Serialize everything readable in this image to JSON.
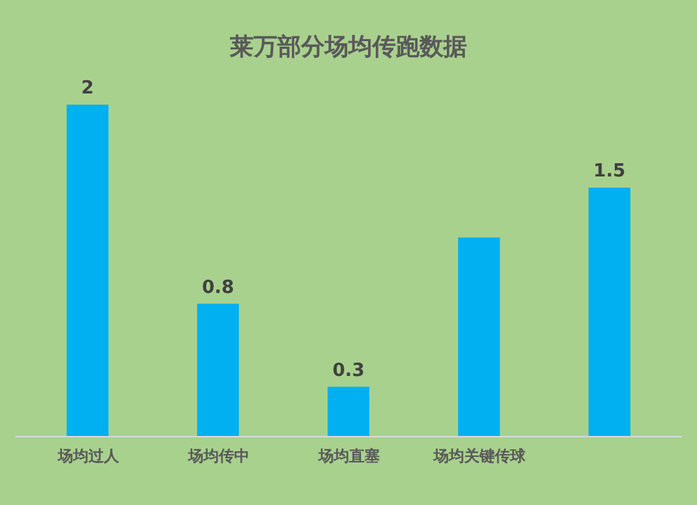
{
  "chart_data": {
    "type": "bar",
    "title": "莱万部分场均传跑数据",
    "categories": [
      "场均过人",
      "场均传中",
      "场均直塞",
      "场均关键传球",
      null
    ],
    "values": [
      2,
      0.8,
      0.3,
      1.2,
      1.5
    ],
    "value_labels": [
      "2",
      "0.8",
      "0.3",
      null,
      "1.5"
    ],
    "color": "#00b0f0",
    "grid": false
  }
}
